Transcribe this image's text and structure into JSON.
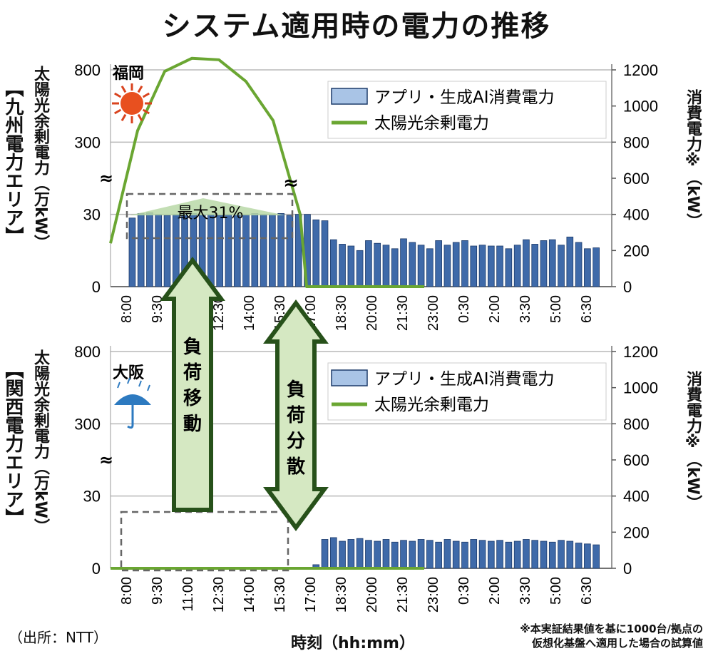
{
  "title": "システム適用時の電力の推移",
  "source": "（出所：NTT）",
  "xlabel": "時刻（hh:mm）",
  "footnote": [
    "※本実証結果値を基に1000台/拠点の",
    "仮想化基盤へ適用した場合の試算値"
  ],
  "colors": {
    "bar": "#3f6aa9",
    "bar_light": "#a9c4e6",
    "line": "#6aa632",
    "arrow_fill": "#d5e8c2",
    "arrow_stroke": "#27511a",
    "grid": "#b8b8b8"
  },
  "chart_data": [
    {
      "type": "bar",
      "panel": "top",
      "area_label": "【九州電力エリア】",
      "city": "福岡",
      "weather_icon": "sun-icon",
      "y_left_label": "太陽光余剰電力（万kW）",
      "y_left_ticks": [
        "0",
        "30",
        "300",
        "800"
      ],
      "y_right_label": "消費電力※（kW）",
      "y_right_ticks": [
        "0",
        "200",
        "400",
        "600",
        "800",
        "1000",
        "1200"
      ],
      "x_ticks": [
        "8:00",
        "9:30",
        "11:00",
        "12:30",
        "14:00",
        "15:30",
        "17:00",
        "18:30",
        "20:00",
        "21:30",
        "23:00",
        "0:30",
        "2:00",
        "3:30",
        "5:00",
        "6:30"
      ],
      "annotation": "最大31%",
      "series": [
        {
          "name": "アプリ・生成AI消費電力",
          "type": "bar",
          "axis": "right",
          "values": [
            380,
            405,
            410,
            400,
            395,
            400,
            402,
            405,
            398,
            400,
            395,
            400,
            402,
            398,
            405,
            400,
            398,
            405,
            395,
            400,
            400,
            370,
            365,
            260,
            235,
            225,
            200,
            255,
            240,
            230,
            210,
            265,
            245,
            230,
            210,
            255,
            230,
            245,
            255,
            225,
            230,
            225,
            225,
            210,
            230,
            260,
            235,
            255,
            260,
            230,
            275,
            245,
            210,
            215
          ]
        },
        {
          "name": "太陽光余剰電力",
          "type": "line",
          "axis": "left",
          "values": [
            18,
            380,
            790,
            880,
            870,
            720,
            450,
            30,
            0,
            0,
            0,
            0,
            0,
            0,
            0,
            0,
            0,
            0,
            0
          ]
        }
      ]
    },
    {
      "type": "bar",
      "panel": "bottom",
      "area_label": "【関西電力エリア】",
      "city": "大阪",
      "weather_icon": "umbrella-rain-icon",
      "y_left_label": "太陽光余剰電力（万kW）",
      "y_left_ticks": [
        "0",
        "30",
        "300",
        "800"
      ],
      "y_right_label": "消費電力※（kW）",
      "y_right_ticks": [
        "0",
        "200",
        "400",
        "600",
        "800",
        "1000",
        "1200"
      ],
      "x_ticks": [
        "8:00",
        "9:30",
        "11:00",
        "12:30",
        "14:00",
        "15:30",
        "17:00",
        "18:30",
        "20:00",
        "21:30",
        "23:00",
        "0:30",
        "2:00",
        "3:30",
        "5:00",
        "6:30"
      ],
      "series": [
        {
          "name": "アプリ・生成AI消費電力",
          "type": "bar",
          "axis": "right",
          "values": [
            0,
            0,
            0,
            0,
            0,
            0,
            0,
            0,
            0,
            0,
            0,
            0,
            0,
            0,
            0,
            0,
            0,
            0,
            0,
            0,
            0,
            20,
            160,
            170,
            150,
            160,
            165,
            155,
            150,
            160,
            145,
            155,
            150,
            160,
            155,
            145,
            160,
            150,
            145,
            160,
            155,
            150,
            155,
            145,
            150,
            160,
            155,
            150,
            145,
            155,
            150,
            140,
            135,
            130
          ]
        },
        {
          "name": "太陽光余剰電力",
          "type": "line",
          "axis": "left",
          "values": [
            0,
            0,
            0,
            0,
            0,
            0,
            0,
            0,
            0,
            0,
            0,
            0,
            0,
            0,
            0,
            0,
            0,
            0,
            0
          ]
        }
      ]
    }
  ],
  "arrows": [
    {
      "label": "負荷移動",
      "chars": [
        "負",
        "荷",
        "移",
        "動"
      ],
      "type": "up-only"
    },
    {
      "label": "負荷分散",
      "chars": [
        "負",
        "荷",
        "分",
        "散"
      ],
      "type": "double"
    }
  ]
}
